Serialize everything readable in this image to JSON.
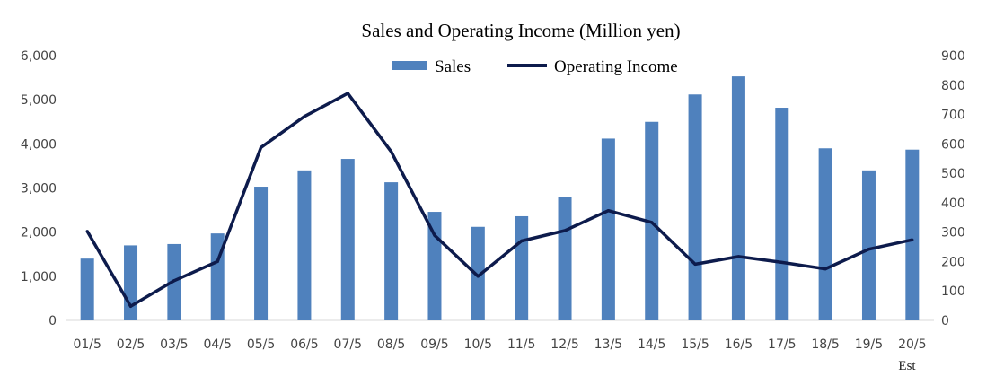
{
  "chart_data": {
    "type": "bar",
    "title": "Sales and Operating Income (Million yen)",
    "categories": [
      "01/5",
      "02/5",
      "03/5",
      "04/5",
      "05/5",
      "06/5",
      "07/5",
      "08/5",
      "09/5",
      "10/5",
      "11/5",
      "12/5",
      "13/5",
      "14/5",
      "15/5",
      "16/5",
      "17/5",
      "18/5",
      "19/5",
      "20/5"
    ],
    "last_category_note": "Est",
    "series": [
      {
        "name": "Sales",
        "type": "bar",
        "axis": "left",
        "color": "#4f81bd",
        "values": [
          1400,
          1700,
          1730,
          1970,
          3030,
          3400,
          3660,
          3130,
          2460,
          2120,
          2360,
          2800,
          4120,
          4500,
          5120,
          5530,
          4820,
          3900,
          3400,
          3870
        ]
      },
      {
        "name": "Operating Income",
        "type": "line",
        "axis": "right",
        "color": "#0d1b4c",
        "values": [
          303,
          48,
          135,
          200,
          588,
          693,
          772,
          574,
          289,
          150,
          270,
          305,
          373,
          333,
          191,
          217,
          197,
          175,
          242,
          274
        ]
      }
    ],
    "y_left": {
      "min": 0,
      "max": 6000,
      "ticks": [
        "0",
        "1,000",
        "2,000",
        "3,000",
        "4,000",
        "5,000",
        "6,000"
      ]
    },
    "y_right": {
      "min": 0,
      "max": 900,
      "ticks": [
        "0",
        "100",
        "200",
        "300",
        "400",
        "500",
        "600",
        "700",
        "800",
        "900"
      ]
    },
    "legend_position": "top-center",
    "grid": false
  }
}
